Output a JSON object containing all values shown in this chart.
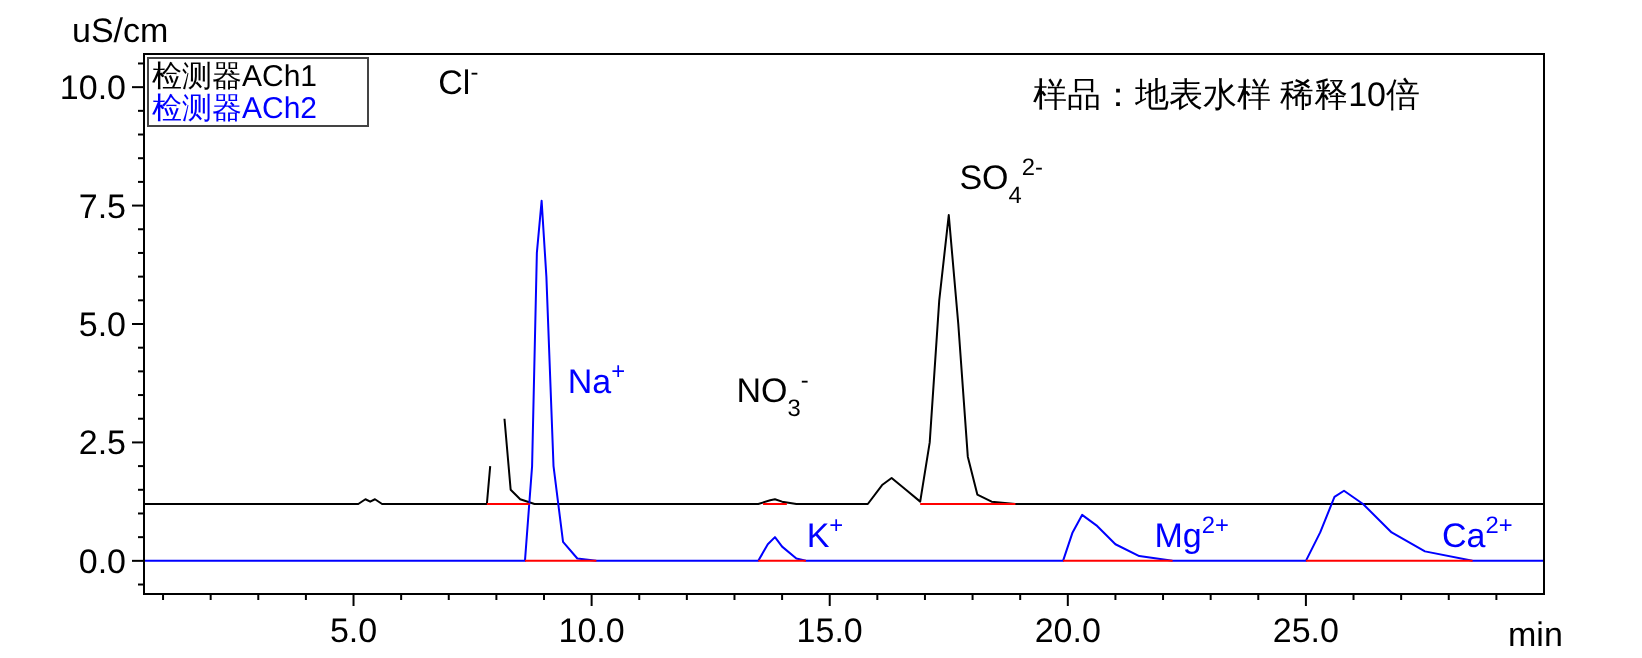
{
  "chart_data": {
    "type": "line",
    "title": "样品：地表水样 稀释10倍",
    "xlabel": "min",
    "ylabel": "uS/cm",
    "legend": "top left",
    "marker": "none",
    "line_style": "solid",
    "grid": false,
    "xlim": [
      0.6,
      30.0
    ],
    "ylim": [
      -0.7,
      10.7
    ],
    "xticks": [
      {
        "value": 1,
        "label": null
      },
      {
        "value": 2,
        "label": null
      },
      {
        "value": 3,
        "label": null
      },
      {
        "value": 4,
        "label": null
      },
      {
        "value": 5,
        "label": "5.0"
      },
      {
        "value": 6,
        "label": null
      },
      {
        "value": 7,
        "label": null
      },
      {
        "value": 8,
        "label": null
      },
      {
        "value": 9,
        "label": null
      },
      {
        "value": 10,
        "label": "10.0"
      },
      {
        "value": 11,
        "label": null
      },
      {
        "value": 12,
        "label": null
      },
      {
        "value": 13,
        "label": null
      },
      {
        "value": 14,
        "label": null
      },
      {
        "value": 15,
        "label": "15.0"
      },
      {
        "value": 16,
        "label": null
      },
      {
        "value": 17,
        "label": null
      },
      {
        "value": 18,
        "label": null
      },
      {
        "value": 19,
        "label": null
      },
      {
        "value": 20,
        "label": "20.0"
      },
      {
        "value": 21,
        "label": null
      },
      {
        "value": 22,
        "label": null
      },
      {
        "value": 23,
        "label": null
      },
      {
        "value": 24,
        "label": null
      },
      {
        "value": 25,
        "label": "25.0"
      },
      {
        "value": 26,
        "label": null
      },
      {
        "value": 27,
        "label": null
      },
      {
        "value": 28,
        "label": null
      },
      {
        "value": 29,
        "label": null
      }
    ],
    "yticks": [
      {
        "value": -0.5,
        "label": null
      },
      {
        "value": 0,
        "label": "0.0"
      },
      {
        "value": 0.5,
        "label": null
      },
      {
        "value": 1,
        "label": null
      },
      {
        "value": 1.5,
        "label": null
      },
      {
        "value": 2,
        "label": null
      },
      {
        "value": 2.5,
        "label": "2.5"
      },
      {
        "value": 3,
        "label": null
      },
      {
        "value": 3.5,
        "label": null
      },
      {
        "value": 4,
        "label": null
      },
      {
        "value": 4.5,
        "label": null
      },
      {
        "value": 5,
        "label": "5.0"
      },
      {
        "value": 5.5,
        "label": null
      },
      {
        "value": 6,
        "label": null
      },
      {
        "value": 6.5,
        "label": null
      },
      {
        "value": 7,
        "label": null
      },
      {
        "value": 7.5,
        "label": "7.5"
      },
      {
        "value": 8,
        "label": null
      },
      {
        "value": 8.5,
        "label": null
      },
      {
        "value": 9,
        "label": null
      },
      {
        "value": 9.5,
        "label": null
      },
      {
        "value": 10,
        "label": "10.0"
      },
      {
        "value": 10.5,
        "label": null
      }
    ],
    "series": [
      {
        "name": "检测器ACh1",
        "color": "#000000",
        "x": [
          0.6,
          5.1,
          5.25,
          5.35,
          5.45,
          5.6,
          7.8,
          7.87,
          7.92,
          8.1,
          8.17,
          8.3,
          8.5,
          8.8,
          13.5,
          13.75,
          13.85,
          14.0,
          14.3,
          15.8,
          16.1,
          16.3,
          16.6,
          16.9,
          17.1,
          17.3,
          17.5,
          17.7,
          17.9,
          18.1,
          18.4,
          18.9,
          30.0
        ],
        "values": [
          1.2,
          1.2,
          1.3,
          1.25,
          1.3,
          1.2,
          1.2,
          2.0,
          null,
          null,
          3.0,
          1.5,
          1.3,
          1.2,
          1.2,
          1.28,
          1.3,
          1.25,
          1.2,
          1.2,
          1.6,
          1.75,
          1.5,
          1.25,
          2.5,
          5.5,
          7.3,
          5.0,
          2.2,
          1.4,
          1.25,
          1.2,
          1.2
        ]
      },
      {
        "name": "检测器ACh2",
        "color": "#0000ff",
        "x": [
          0.6,
          8.6,
          8.75,
          8.85,
          8.95,
          9.05,
          9.2,
          9.4,
          9.7,
          10.1,
          13.5,
          13.7,
          13.85,
          14.0,
          14.3,
          14.5,
          19.9,
          20.1,
          20.3,
          20.6,
          21.0,
          21.5,
          22.2,
          25.0,
          25.3,
          25.6,
          25.8,
          26.2,
          26.8,
          27.5,
          28.5,
          30.0
        ],
        "values": [
          0,
          0,
          2.0,
          6.5,
          7.6,
          6.0,
          2.0,
          0.4,
          0.05,
          0,
          0,
          0.35,
          0.5,
          0.3,
          0.05,
          0,
          0,
          0.6,
          0.97,
          0.75,
          0.35,
          0.1,
          0,
          0,
          0.6,
          1.35,
          1.48,
          1.2,
          0.6,
          0.2,
          0,
          0
        ]
      },
      {
        "color": "#ff0000",
        "x": [
          7.8,
          8.7,
          null,
          13.6,
          14.1,
          null,
          16.9,
          18.9,
          null,
          8.6,
          10.1,
          null,
          13.5,
          14.5,
          null,
          19.9,
          22.2,
          null,
          25.0,
          28.5
        ],
        "values": [
          1.2,
          1.2,
          null,
          1.2,
          1.2,
          null,
          1.2,
          1.2,
          null,
          0,
          0,
          null,
          0,
          0,
          null,
          0,
          0,
          null,
          0,
          0
        ]
      }
    ],
    "annotations": [
      "Cl$^{-}$",
      "Na$^{+}$",
      "NO$_{3}$$^{-}$",
      "K$^{+}$",
      "SO$_{4}$$^{2-}$",
      "Mg$^{2+}$",
      "Ca$^{2+}$"
    ]
  }
}
